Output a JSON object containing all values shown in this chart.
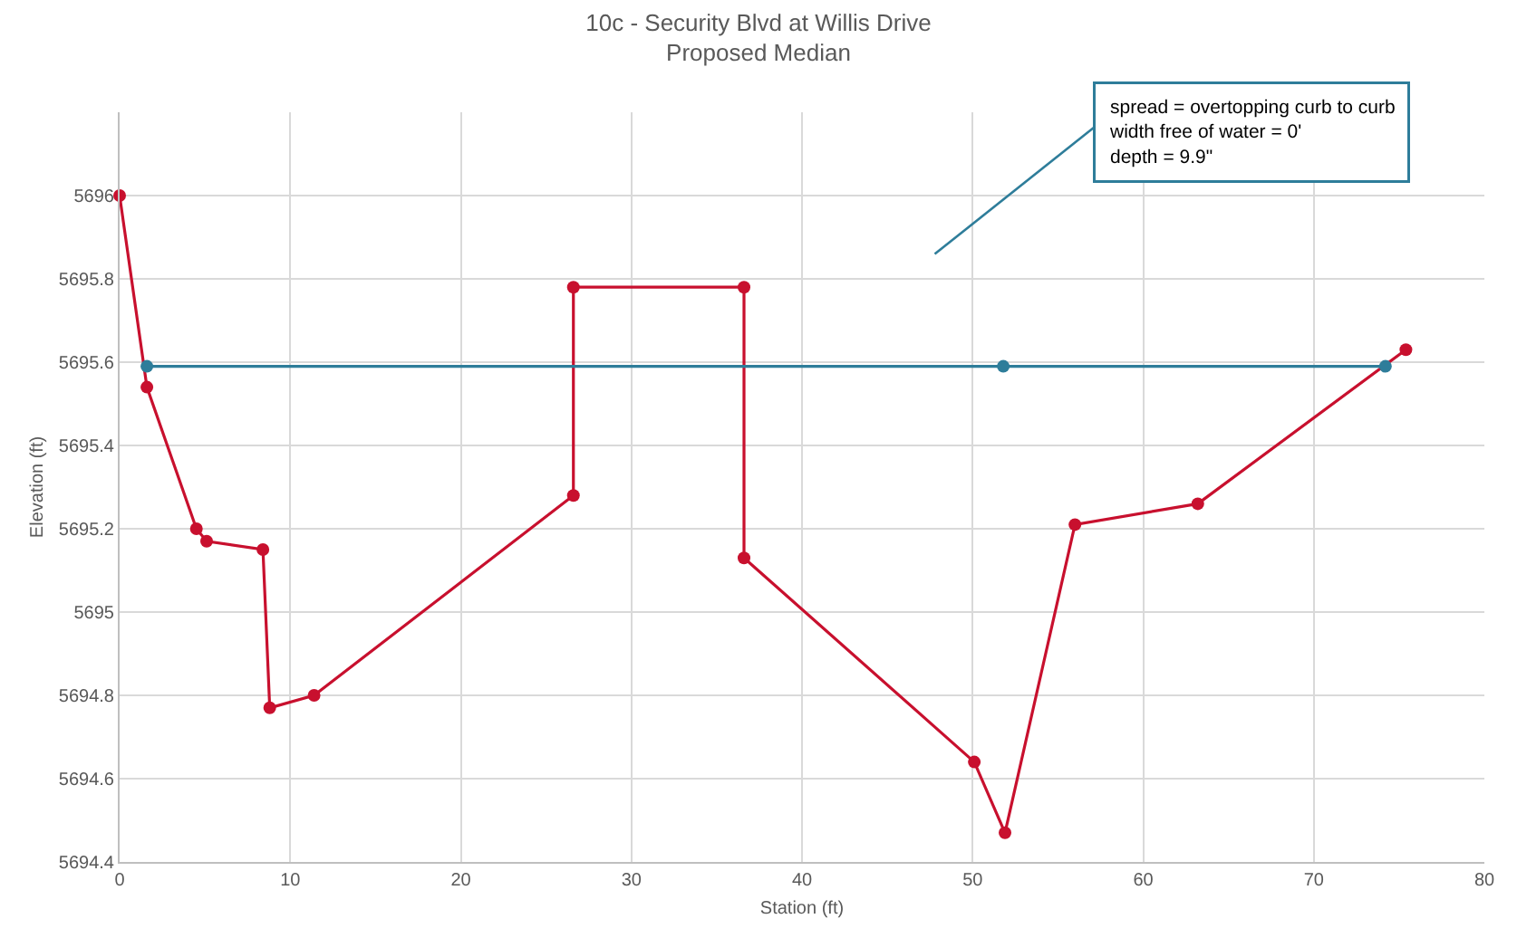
{
  "chart_data": {
    "type": "line",
    "title": "10c - Security Blvd at Willis Drive\nProposed Median",
    "xlabel": "Station (ft)",
    "ylabel": "Elevation (ft)",
    "series": [
      {
        "color": "#c8102e",
        "x": [
          0,
          1.6,
          4.5,
          5.1,
          8.4,
          8.8,
          11.4,
          26.6,
          26.6,
          36.6,
          36.6,
          50.1,
          51.9,
          56.0,
          63.2,
          75.4
        ],
        "values": [
          5696,
          5695.54,
          5695.2,
          5695.17,
          5695.15,
          5694.77,
          5694.8,
          5695.28,
          5695.78,
          5695.78,
          5695.13,
          5694.64,
          5694.47,
          5695.21,
          5695.26,
          5695.63
        ]
      },
      {
        "color": "#2e7d9a",
        "x": [
          1.6,
          51.8,
          74.2
        ],
        "values": [
          5695.59,
          5695.59,
          5695.59
        ]
      }
    ],
    "xlim": [
      0,
      80
    ],
    "xticks": [
      0,
      10,
      20,
      30,
      40,
      50,
      60,
      70,
      80
    ],
    "ylim": [
      5694.4,
      5696.2
    ],
    "yticks": [
      5694.4,
      5694.6,
      5694.8,
      5695,
      5695.2,
      5695.4,
      5695.6,
      5695.8,
      5696
    ],
    "grid": true,
    "marker": "circle",
    "line_style": "solid",
    "annotations": [
      "spread = overtopping curb to curb\nwidth free of water = 0'\ndepth = 9.9\""
    ]
  }
}
